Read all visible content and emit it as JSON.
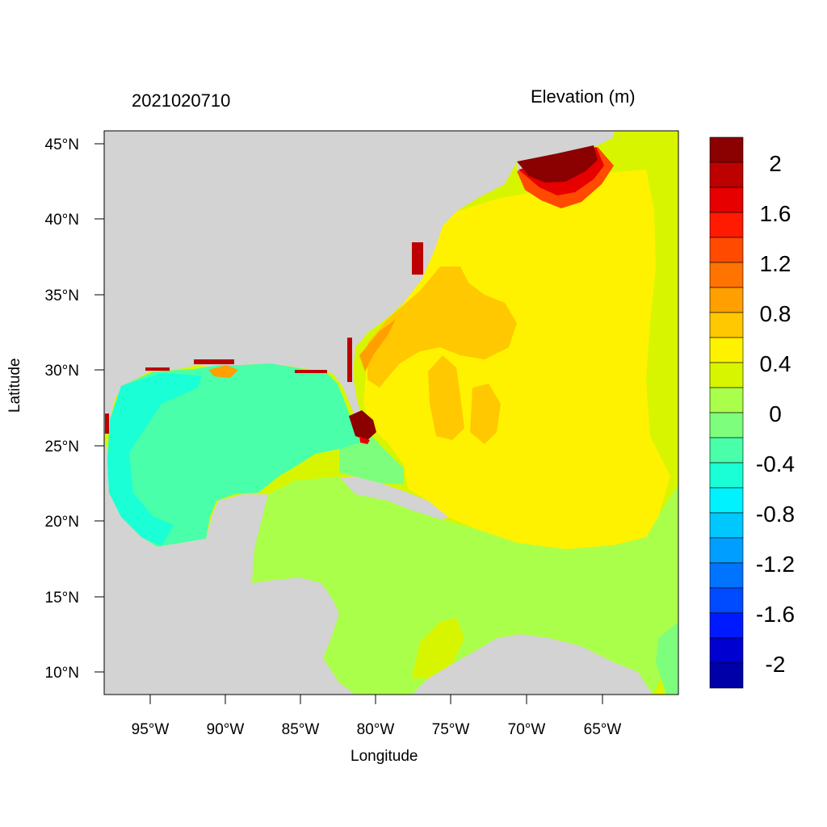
{
  "header": {
    "date": "2021020710",
    "variable": "Elevation (m)"
  },
  "axes": {
    "xlabel": "Longitude",
    "ylabel": "Latitude",
    "lon_ticks": [
      "95°W",
      "90°W",
      "85°W",
      "80°W",
      "75°W",
      "70°W",
      "65°W"
    ],
    "lat_ticks": [
      "45°N",
      "40°N",
      "35°N",
      "30°N",
      "25°N",
      "20°N",
      "15°N",
      "10°N"
    ]
  },
  "colorbar": {
    "labels": [
      "2",
      "1.6",
      "1.2",
      "0.8",
      "0.4",
      "0",
      "-0.4",
      "-0.8",
      "-1.2",
      "-1.6",
      "-2"
    ],
    "colors": [
      "#8b0000",
      "#bd0000",
      "#e60000",
      "#ff1a00",
      "#ff4a00",
      "#ff7300",
      "#ff9f00",
      "#ffc800",
      "#fff200",
      "#d8f500",
      "#aaff4a",
      "#7dff7d",
      "#4affaa",
      "#1affd5",
      "#00f2ff",
      "#00c8ff",
      "#009fff",
      "#0073ff",
      "#004aff",
      "#001aff",
      "#0000d0",
      "#0000a8"
    ]
  },
  "colors": {
    "land": "#d3d3d3",
    "background": "#ffffff"
  }
}
